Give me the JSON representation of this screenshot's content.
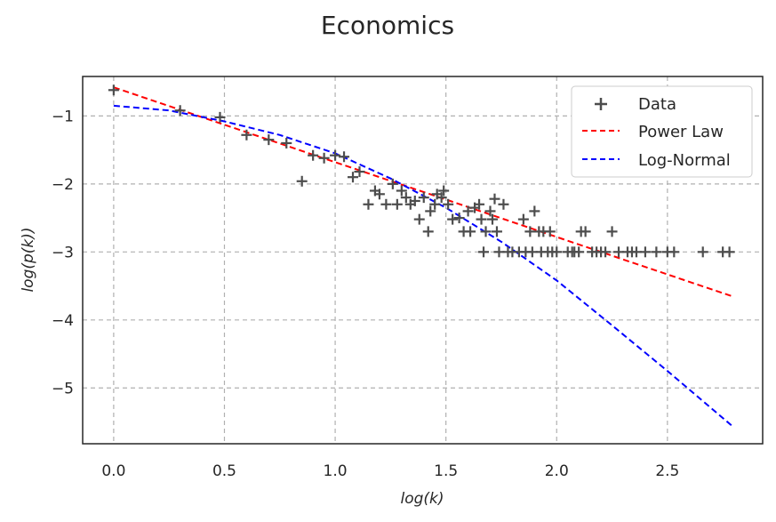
{
  "chart_data": {
    "type": "scatter",
    "title": "Economics",
    "xlabel": "log(k)",
    "ylabel": "log(p(k))",
    "xlim": [
      -0.14,
      2.93
    ],
    "ylim": [
      -5.82,
      -0.42
    ],
    "xticks": [
      0.0,
      0.5,
      1.0,
      1.5,
      2.0,
      2.5
    ],
    "xtick_labels": [
      "0.0",
      "0.5",
      "1.0",
      "1.5",
      "2.0",
      "2.5"
    ],
    "yticks": [
      -1,
      -2,
      -3,
      -4,
      -5
    ],
    "ytick_labels": [
      "−1",
      "−2",
      "−3",
      "−4",
      "−5"
    ],
    "grid": true,
    "legend_position": "top-right",
    "series": [
      {
        "name": "Data",
        "kind": "scatter",
        "marker": "+",
        "color": "#4d4d4d",
        "points": [
          [
            0.0,
            -0.62
          ],
          [
            0.3,
            -0.92
          ],
          [
            0.48,
            -1.02
          ],
          [
            0.6,
            -1.28
          ],
          [
            0.7,
            -1.35
          ],
          [
            0.78,
            -1.4
          ],
          [
            0.85,
            -1.96
          ],
          [
            0.9,
            -1.58
          ],
          [
            0.95,
            -1.62
          ],
          [
            1.0,
            -1.58
          ],
          [
            1.04,
            -1.6
          ],
          [
            1.08,
            -1.9
          ],
          [
            1.11,
            -1.82
          ],
          [
            1.15,
            -2.3
          ],
          [
            1.18,
            -2.1
          ],
          [
            1.2,
            -2.15
          ],
          [
            1.23,
            -2.3
          ],
          [
            1.26,
            -2.0
          ],
          [
            1.28,
            -2.3
          ],
          [
            1.3,
            -2.1
          ],
          [
            1.32,
            -2.2
          ],
          [
            1.34,
            -2.3
          ],
          [
            1.36,
            -2.25
          ],
          [
            1.38,
            -2.52
          ],
          [
            1.4,
            -2.2
          ],
          [
            1.42,
            -2.7
          ],
          [
            1.43,
            -2.4
          ],
          [
            1.45,
            -2.3
          ],
          [
            1.46,
            -2.15
          ],
          [
            1.48,
            -2.2
          ],
          [
            1.49,
            -2.1
          ],
          [
            1.51,
            -2.3
          ],
          [
            1.53,
            -2.52
          ],
          [
            1.56,
            -2.5
          ],
          [
            1.58,
            -2.7
          ],
          [
            1.6,
            -2.4
          ],
          [
            1.61,
            -2.7
          ],
          [
            1.63,
            -2.35
          ],
          [
            1.65,
            -2.3
          ],
          [
            1.66,
            -2.52
          ],
          [
            1.67,
            -3.0
          ],
          [
            1.68,
            -2.7
          ],
          [
            1.7,
            -2.4
          ],
          [
            1.71,
            -2.52
          ],
          [
            1.72,
            -2.22
          ],
          [
            1.73,
            -2.7
          ],
          [
            1.74,
            -3.0
          ],
          [
            1.76,
            -2.3
          ],
          [
            1.78,
            -3.0
          ],
          [
            1.8,
            -3.0
          ],
          [
            1.83,
            -3.0
          ],
          [
            1.85,
            -2.52
          ],
          [
            1.86,
            -3.0
          ],
          [
            1.88,
            -2.7
          ],
          [
            1.89,
            -3.0
          ],
          [
            1.9,
            -2.4
          ],
          [
            1.92,
            -2.7
          ],
          [
            1.93,
            -3.0
          ],
          [
            1.94,
            -2.7
          ],
          [
            1.96,
            -3.0
          ],
          [
            1.97,
            -2.7
          ],
          [
            1.98,
            -3.0
          ],
          [
            2.0,
            -3.0
          ],
          [
            2.05,
            -3.0
          ],
          [
            2.07,
            -3.0
          ],
          [
            2.08,
            -3.0
          ],
          [
            2.1,
            -3.0
          ],
          [
            2.11,
            -2.7
          ],
          [
            2.13,
            -2.7
          ],
          [
            2.16,
            -3.0
          ],
          [
            2.18,
            -3.0
          ],
          [
            2.2,
            -3.0
          ],
          [
            2.22,
            -3.0
          ],
          [
            2.25,
            -2.7
          ],
          [
            2.28,
            -3.0
          ],
          [
            2.32,
            -3.0
          ],
          [
            2.34,
            -3.0
          ],
          [
            2.36,
            -3.0
          ],
          [
            2.4,
            -3.0
          ],
          [
            2.45,
            -3.0
          ],
          [
            2.5,
            -3.0
          ],
          [
            2.53,
            -3.0
          ],
          [
            2.66,
            -3.0
          ],
          [
            2.75,
            -3.0
          ],
          [
            2.78,
            -3.0
          ]
        ]
      },
      {
        "name": "Power Law",
        "kind": "line",
        "style": "dashed",
        "color": "#ff0000",
        "x": [
          0.0,
          0.5,
          1.0,
          1.5,
          2.0,
          2.5,
          2.8
        ],
        "y": [
          -0.58,
          -1.13,
          -1.68,
          -2.23,
          -2.78,
          -3.33,
          -3.66
        ]
      },
      {
        "name": "Log-Normal",
        "kind": "line",
        "style": "dashed",
        "color": "#0000ff",
        "x": [
          0.0,
          0.25,
          0.5,
          0.75,
          1.0,
          1.25,
          1.5,
          1.75,
          2.0,
          2.25,
          2.5,
          2.8
        ],
        "y": [
          -0.85,
          -0.92,
          -1.08,
          -1.28,
          -1.55,
          -1.92,
          -2.35,
          -2.85,
          -3.42,
          -4.08,
          -4.75,
          -5.58
        ]
      }
    ]
  }
}
